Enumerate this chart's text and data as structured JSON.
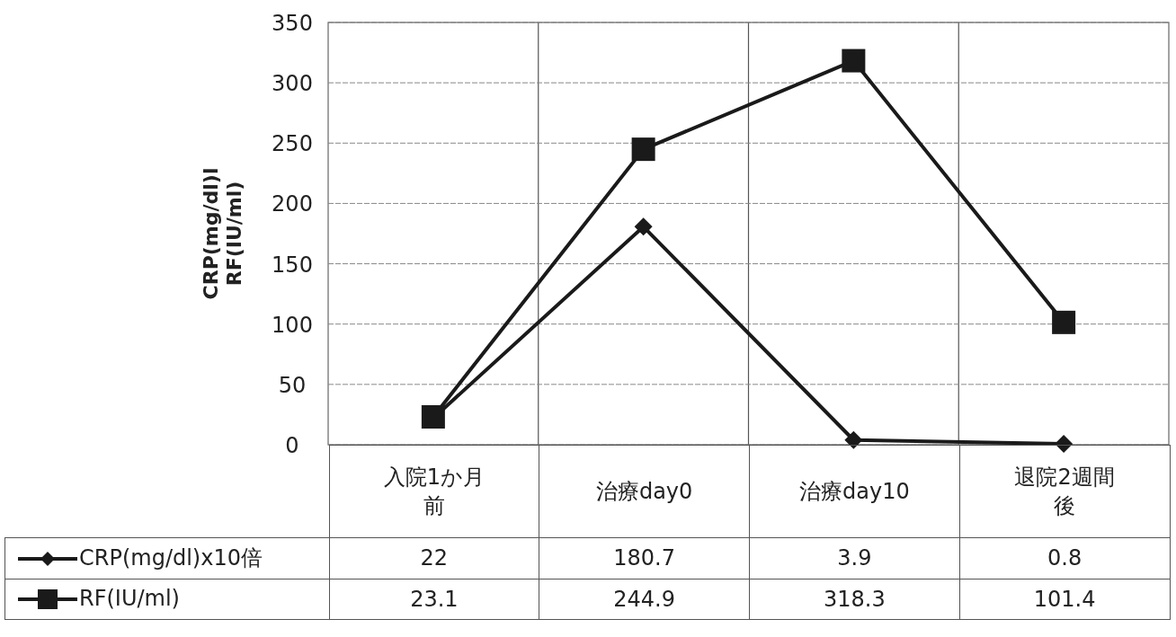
{
  "chart_data": {
    "type": "line",
    "ylabel": "CRP(mg/dl)l\nRF(IU/ml)",
    "categories": [
      "入院1か月前",
      "治療day0",
      "治療day10",
      "退院2週間後"
    ],
    "series": [
      {
        "name": "CRP(mg/dl)x10倍",
        "color": "#1a1a1a",
        "marker": "diamond",
        "values": [
          22,
          180.7,
          3.9,
          0.8
        ]
      },
      {
        "name": "RF(IU/ml)",
        "color": "#1a1a1a",
        "marker": "square",
        "values": [
          23.1,
          244.9,
          318.3,
          101.4
        ]
      }
    ],
    "ylim": [
      0,
      350
    ],
    "yticks": [
      0,
      50,
      100,
      150,
      200,
      250,
      300,
      350
    ],
    "grid": "y",
    "data_labels": true,
    "legend": "bottom",
    "line_style": "solid"
  }
}
